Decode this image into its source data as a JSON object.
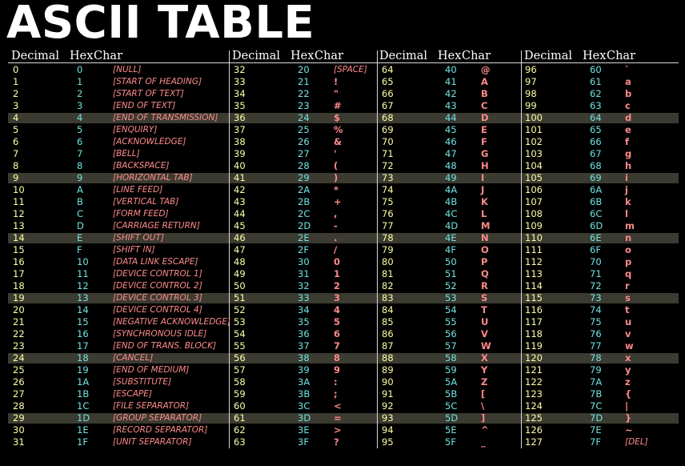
{
  "title": "ASCII TABLE",
  "colors": {
    "background": "#000000",
    "decimal": "#ffffa6",
    "hex": "#6fe2e2",
    "char": "#ff8a8a",
    "highlight_band": "#3b3b31"
  },
  "headers": [
    "Decimal",
    "Hex",
    "Char"
  ],
  "highlighted_row_indices": [
    4,
    9,
    14,
    19,
    24,
    29
  ],
  "columns": [
    {
      "rows": [
        {
          "dec": "0",
          "hex": "0",
          "char": "[NULL]"
        },
        {
          "dec": "1",
          "hex": "1",
          "char": "[START OF HEADING]"
        },
        {
          "dec": "2",
          "hex": "2",
          "char": "[START OF TEXT]"
        },
        {
          "dec": "3",
          "hex": "3",
          "char": "[END OF TEXT]"
        },
        {
          "dec": "4",
          "hex": "4",
          "char": "[END OF TRANSMISSION]"
        },
        {
          "dec": "5",
          "hex": "5",
          "char": "[ENQUIRY]"
        },
        {
          "dec": "6",
          "hex": "6",
          "char": "[ACKNOWLEDGE]"
        },
        {
          "dec": "7",
          "hex": "7",
          "char": "[BELL]"
        },
        {
          "dec": "8",
          "hex": "8",
          "char": "[BACKSPACE]"
        },
        {
          "dec": "9",
          "hex": "9",
          "char": "[HORIZONTAL TAB]"
        },
        {
          "dec": "10",
          "hex": "A",
          "char": "[LINE FEED]"
        },
        {
          "dec": "11",
          "hex": "B",
          "char": "[VERTICAL TAB]"
        },
        {
          "dec": "12",
          "hex": "C",
          "char": "[FORM FEED]"
        },
        {
          "dec": "13",
          "hex": "D",
          "char": "[CARRIAGE RETURN]"
        },
        {
          "dec": "14",
          "hex": "E",
          "char": "[SHIFT OUT]"
        },
        {
          "dec": "15",
          "hex": "F",
          "char": "[SHIFT IN]"
        },
        {
          "dec": "16",
          "hex": "10",
          "char": "[DATA LINK ESCAPE]"
        },
        {
          "dec": "17",
          "hex": "11",
          "char": "[DEVICE CONTROL 1]"
        },
        {
          "dec": "18",
          "hex": "12",
          "char": "[DEVICE CONTROL 2]"
        },
        {
          "dec": "19",
          "hex": "13",
          "char": "[DEVICE CONTROL 3]"
        },
        {
          "dec": "20",
          "hex": "14",
          "char": "[DEVICE CONTROL 4]"
        },
        {
          "dec": "21",
          "hex": "15",
          "char": "[NEGATIVE ACKNOWLEDGE]"
        },
        {
          "dec": "22",
          "hex": "16",
          "char": "[SYNCHRONOUS IDLE]"
        },
        {
          "dec": "23",
          "hex": "17",
          "char": "[END OF TRANS. BLOCK]"
        },
        {
          "dec": "24",
          "hex": "18",
          "char": "[CANCEL]"
        },
        {
          "dec": "25",
          "hex": "19",
          "char": "[END OF MEDIUM]"
        },
        {
          "dec": "26",
          "hex": "1A",
          "char": "[SUBSTITUTE]"
        },
        {
          "dec": "27",
          "hex": "1B",
          "char": "[ESCAPE]"
        },
        {
          "dec": "28",
          "hex": "1C",
          "char": "[FILE SEPARATOR]"
        },
        {
          "dec": "29",
          "hex": "1D",
          "char": "[GROUP SEPARATOR]"
        },
        {
          "dec": "30",
          "hex": "1E",
          "char": "[RECORD SEPARATOR]"
        },
        {
          "dec": "31",
          "hex": "1F",
          "char": "[UNIT SEPARATOR]"
        }
      ]
    },
    {
      "rows": [
        {
          "dec": "32",
          "hex": "20",
          "char": "[SPACE]"
        },
        {
          "dec": "33",
          "hex": "21",
          "char": "!"
        },
        {
          "dec": "34",
          "hex": "22",
          "char": "\""
        },
        {
          "dec": "35",
          "hex": "23",
          "char": "#"
        },
        {
          "dec": "36",
          "hex": "24",
          "char": "$"
        },
        {
          "dec": "37",
          "hex": "25",
          "char": "%"
        },
        {
          "dec": "38",
          "hex": "26",
          "char": "&"
        },
        {
          "dec": "39",
          "hex": "27",
          "char": "'"
        },
        {
          "dec": "40",
          "hex": "28",
          "char": "("
        },
        {
          "dec": "41",
          "hex": "29",
          "char": ")"
        },
        {
          "dec": "42",
          "hex": "2A",
          "char": "*"
        },
        {
          "dec": "43",
          "hex": "2B",
          "char": "+"
        },
        {
          "dec": "44",
          "hex": "2C",
          "char": ","
        },
        {
          "dec": "45",
          "hex": "2D",
          "char": "-"
        },
        {
          "dec": "46",
          "hex": "2E",
          "char": "."
        },
        {
          "dec": "47",
          "hex": "2F",
          "char": "/"
        },
        {
          "dec": "48",
          "hex": "30",
          "char": "0"
        },
        {
          "dec": "49",
          "hex": "31",
          "char": "1"
        },
        {
          "dec": "50",
          "hex": "32",
          "char": "2"
        },
        {
          "dec": "51",
          "hex": "33",
          "char": "3"
        },
        {
          "dec": "52",
          "hex": "34",
          "char": "4"
        },
        {
          "dec": "53",
          "hex": "35",
          "char": "5"
        },
        {
          "dec": "54",
          "hex": "36",
          "char": "6"
        },
        {
          "dec": "55",
          "hex": "37",
          "char": "7"
        },
        {
          "dec": "56",
          "hex": "38",
          "char": "8"
        },
        {
          "dec": "57",
          "hex": "39",
          "char": "9"
        },
        {
          "dec": "58",
          "hex": "3A",
          "char": ":"
        },
        {
          "dec": "59",
          "hex": "3B",
          "char": ";"
        },
        {
          "dec": "60",
          "hex": "3C",
          "char": "<"
        },
        {
          "dec": "61",
          "hex": "3D",
          "char": "="
        },
        {
          "dec": "62",
          "hex": "3E",
          "char": ">"
        },
        {
          "dec": "63",
          "hex": "3F",
          "char": "?"
        }
      ]
    },
    {
      "rows": [
        {
          "dec": "64",
          "hex": "40",
          "char": "@"
        },
        {
          "dec": "65",
          "hex": "41",
          "char": "A"
        },
        {
          "dec": "66",
          "hex": "42",
          "char": "B"
        },
        {
          "dec": "67",
          "hex": "43",
          "char": "C"
        },
        {
          "dec": "68",
          "hex": "44",
          "char": "D"
        },
        {
          "dec": "69",
          "hex": "45",
          "char": "E"
        },
        {
          "dec": "70",
          "hex": "46",
          "char": "F"
        },
        {
          "dec": "71",
          "hex": "47",
          "char": "G"
        },
        {
          "dec": "72",
          "hex": "48",
          "char": "H"
        },
        {
          "dec": "73",
          "hex": "49",
          "char": "I"
        },
        {
          "dec": "74",
          "hex": "4A",
          "char": "J"
        },
        {
          "dec": "75",
          "hex": "4B",
          "char": "K"
        },
        {
          "dec": "76",
          "hex": "4C",
          "char": "L"
        },
        {
          "dec": "77",
          "hex": "4D",
          "char": "M"
        },
        {
          "dec": "78",
          "hex": "4E",
          "char": "N"
        },
        {
          "dec": "79",
          "hex": "4F",
          "char": "O"
        },
        {
          "dec": "80",
          "hex": "50",
          "char": "P"
        },
        {
          "dec": "81",
          "hex": "51",
          "char": "Q"
        },
        {
          "dec": "82",
          "hex": "52",
          "char": "R"
        },
        {
          "dec": "83",
          "hex": "53",
          "char": "S"
        },
        {
          "dec": "84",
          "hex": "54",
          "char": "T"
        },
        {
          "dec": "85",
          "hex": "55",
          "char": "U"
        },
        {
          "dec": "86",
          "hex": "56",
          "char": "V"
        },
        {
          "dec": "87",
          "hex": "57",
          "char": "W"
        },
        {
          "dec": "88",
          "hex": "58",
          "char": "X"
        },
        {
          "dec": "89",
          "hex": "59",
          "char": "Y"
        },
        {
          "dec": "90",
          "hex": "5A",
          "char": "Z"
        },
        {
          "dec": "91",
          "hex": "5B",
          "char": "["
        },
        {
          "dec": "92",
          "hex": "5C",
          "char": "\\"
        },
        {
          "dec": "93",
          "hex": "5D",
          "char": "]"
        },
        {
          "dec": "94",
          "hex": "5E",
          "char": "^"
        },
        {
          "dec": "95",
          "hex": "5F",
          "char": "_"
        }
      ]
    },
    {
      "rows": [
        {
          "dec": "96",
          "hex": "60",
          "char": "`"
        },
        {
          "dec": "97",
          "hex": "61",
          "char": "a"
        },
        {
          "dec": "98",
          "hex": "62",
          "char": "b"
        },
        {
          "dec": "99",
          "hex": "63",
          "char": "c"
        },
        {
          "dec": "100",
          "hex": "64",
          "char": "d"
        },
        {
          "dec": "101",
          "hex": "65",
          "char": "e"
        },
        {
          "dec": "102",
          "hex": "66",
          "char": "f"
        },
        {
          "dec": "103",
          "hex": "67",
          "char": "g"
        },
        {
          "dec": "104",
          "hex": "68",
          "char": "h"
        },
        {
          "dec": "105",
          "hex": "69",
          "char": "i"
        },
        {
          "dec": "106",
          "hex": "6A",
          "char": "j"
        },
        {
          "dec": "107",
          "hex": "6B",
          "char": "k"
        },
        {
          "dec": "108",
          "hex": "6C",
          "char": "l"
        },
        {
          "dec": "109",
          "hex": "6D",
          "char": "m"
        },
        {
          "dec": "110",
          "hex": "6E",
          "char": "n"
        },
        {
          "dec": "111",
          "hex": "6F",
          "char": "o"
        },
        {
          "dec": "112",
          "hex": "70",
          "char": "p"
        },
        {
          "dec": "113",
          "hex": "71",
          "char": "q"
        },
        {
          "dec": "114",
          "hex": "72",
          "char": "r"
        },
        {
          "dec": "115",
          "hex": "73",
          "char": "s"
        },
        {
          "dec": "116",
          "hex": "74",
          "char": "t"
        },
        {
          "dec": "117",
          "hex": "75",
          "char": "u"
        },
        {
          "dec": "118",
          "hex": "76",
          "char": "v"
        },
        {
          "dec": "119",
          "hex": "77",
          "char": "w"
        },
        {
          "dec": "120",
          "hex": "78",
          "char": "x"
        },
        {
          "dec": "121",
          "hex": "79",
          "char": "y"
        },
        {
          "dec": "122",
          "hex": "7A",
          "char": "z"
        },
        {
          "dec": "123",
          "hex": "7B",
          "char": "{"
        },
        {
          "dec": "124",
          "hex": "7C",
          "char": "|"
        },
        {
          "dec": "125",
          "hex": "7D",
          "char": "}"
        },
        {
          "dec": "126",
          "hex": "7E",
          "char": "~"
        },
        {
          "dec": "127",
          "hex": "7F",
          "char": "[DEL]"
        }
      ]
    }
  ]
}
